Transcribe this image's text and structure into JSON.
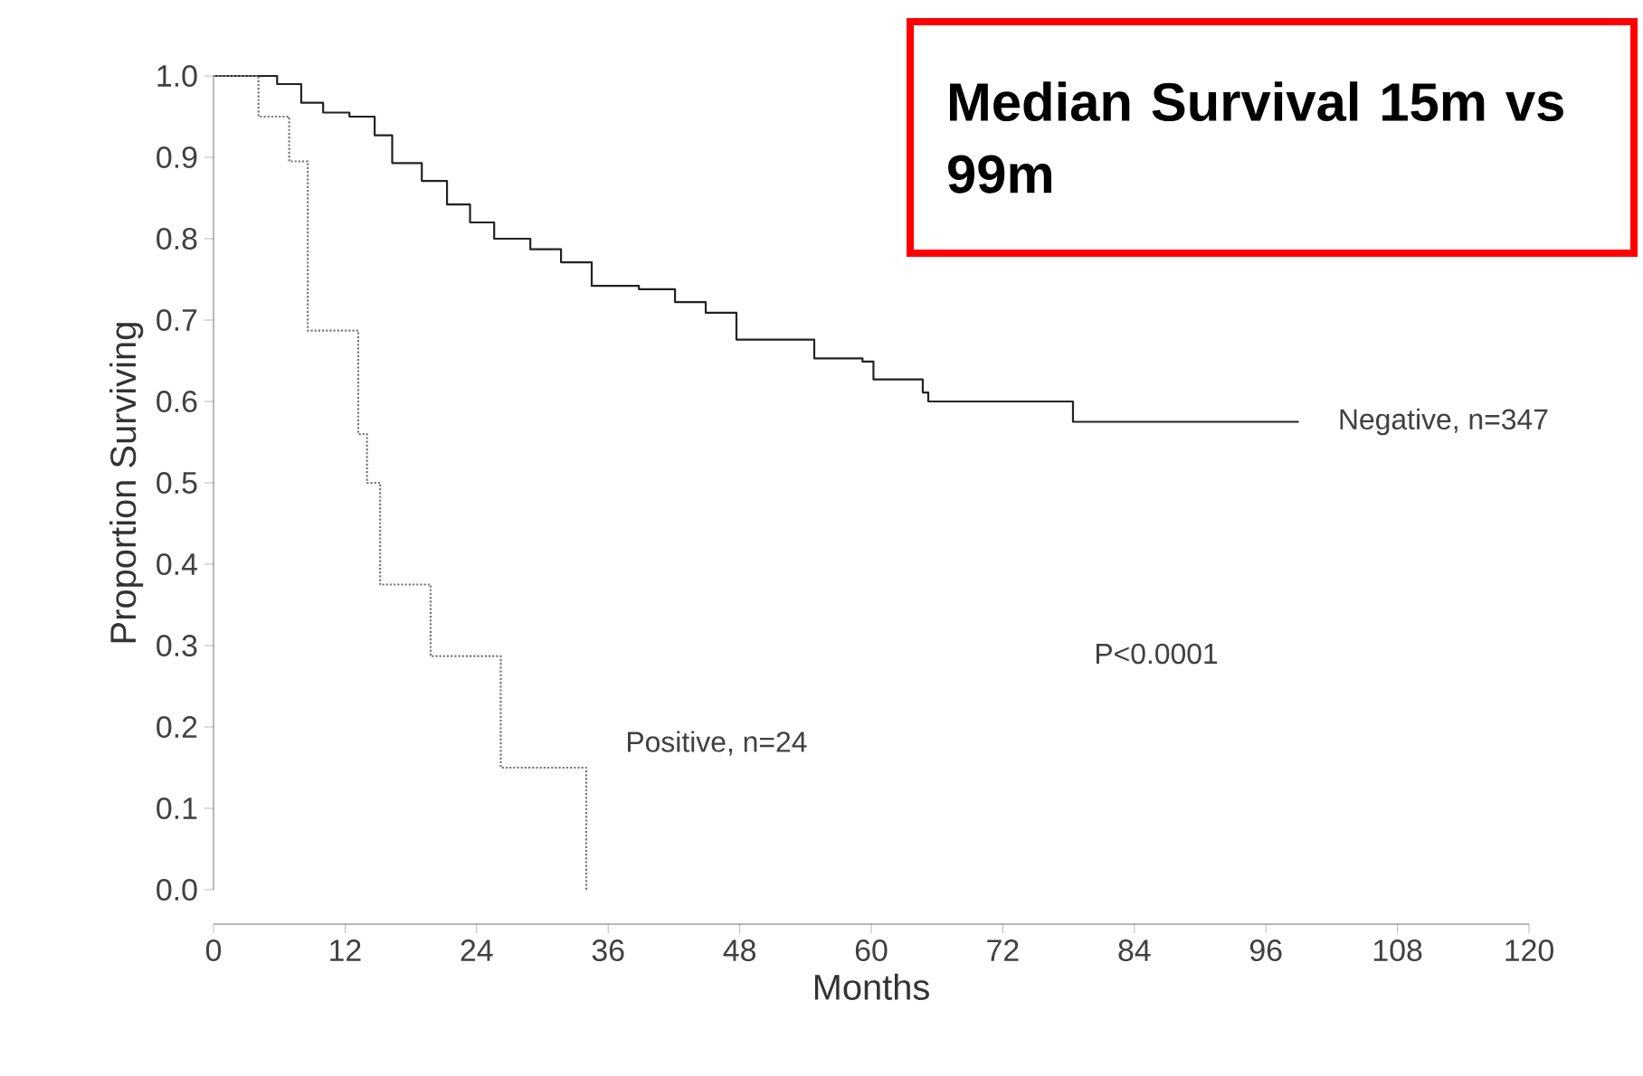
{
  "chart_data": {
    "type": "step",
    "xlabel": "Months",
    "ylabel": "Proportion Surviving",
    "annotations": [
      "Median Survival 15m vs 99m",
      "P<0.0001"
    ],
    "xlim": [
      0,
      120
    ],
    "xticks": [
      0,
      12,
      24,
      36,
      48,
      60,
      72,
      84,
      96,
      108,
      120
    ],
    "ylim": [
      0,
      1
    ],
    "yticks": [
      {
        "value": 0,
        "label": "0.0"
      },
      0.1,
      0.2,
      0.3,
      0.4,
      0.5,
      0.6,
      0.7,
      0.8,
      0.9,
      {
        "value": 1,
        "label": "1.0"
      }
    ],
    "grid": false,
    "legend": false,
    "series": [
      {
        "name": "Negative, n=347",
        "color": "#222222",
        "line_style": "solid",
        "x": [
          0,
          5.8,
          8,
          10,
          12.4,
          14.7,
          16.3,
          19,
          21.3,
          23.4,
          25.6,
          28.9,
          31.7,
          34.5,
          38.8,
          42.1,
          44.9,
          47.7,
          54.8,
          59.2,
          60.2,
          64.7,
          65.2,
          78.4,
          99
        ],
        "values": [
          1.0,
          0.99,
          0.967,
          0.955,
          0.95,
          0.927,
          0.893,
          0.871,
          0.842,
          0.82,
          0.8,
          0.787,
          0.771,
          0.742,
          0.738,
          0.722,
          0.709,
          0.676,
          0.653,
          0.649,
          0.627,
          0.611,
          0.6,
          0.575,
          0.575
        ]
      },
      {
        "name": "Positive, n=24",
        "color": "#777777",
        "line_style": "dotted",
        "x": [
          0,
          4.1,
          6.9,
          8.6,
          13.2,
          14.0,
          15.2,
          19.8,
          26.2,
          34
        ],
        "values": [
          1.0,
          0.95,
          0.895,
          0.687,
          0.56,
          0.5,
          0.375,
          0.287,
          0.15,
          0
        ]
      }
    ]
  }
}
